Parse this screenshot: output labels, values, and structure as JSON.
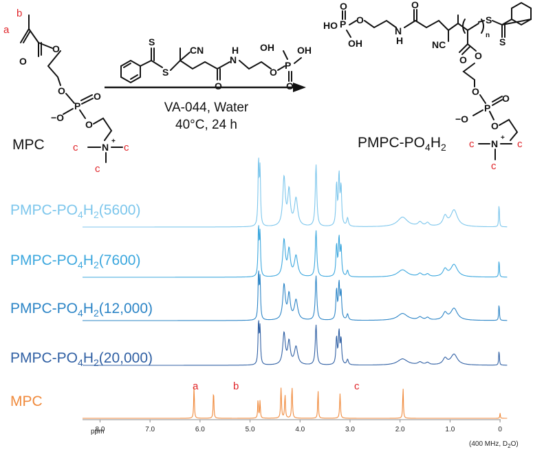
{
  "reaction": {
    "monomer_name": "MPC",
    "product_name": "PMPC-PO4H2",
    "product_name_parts": [
      "PMPC-PO",
      "4",
      "H",
      "2"
    ],
    "conditions": [
      "VA-044, Water",
      "40°C, 24 h"
    ],
    "arrow_icon": "right-arrow-icon"
  },
  "atoms": {
    "o": "O",
    "s": "S",
    "n": "N",
    "p": "P",
    "h": "H",
    "cn": "CN",
    "nc": "NC",
    "oh": "OH",
    "ho": "HO",
    "neg": "−O",
    "plus": "+",
    "rep": "n"
  },
  "proton_labels": {
    "a": "a",
    "b": "b",
    "c": "c"
  },
  "spectra": {
    "colors": {
      "highlight": "#f8f4a8",
      "mpc": "#f08a3c",
      "s20000": "#2f5fa3",
      "s12000": "#2b84c6",
      "s7600": "#3ba7de",
      "s5600": "#7cc6ec"
    },
    "traces": [
      {
        "label": "PMPC-PO4H2(5600)",
        "parts": [
          "PMPC-PO",
          "4",
          "H",
          "2",
          "(5600)"
        ],
        "color": "#7cc6ec",
        "type": "polymer"
      },
      {
        "label": "PMPC-PO4H2(7600)",
        "parts": [
          "PMPC-PO",
          "4",
          "H",
          "2",
          "(7600)"
        ],
        "color": "#3ba7de",
        "type": "polymer"
      },
      {
        "label": "PMPC-PO4H2(12,000)",
        "parts": [
          "PMPC-PO",
          "4",
          "H",
          "2",
          "(12,000)"
        ],
        "color": "#2b84c6",
        "type": "polymer"
      },
      {
        "label": "PMPC-PO4H2(20,000)",
        "parts": [
          "PMPC-PO",
          "4",
          "H",
          "2",
          "(20,000)"
        ],
        "color": "#2f5fa3",
        "type": "polymer"
      },
      {
        "label": "MPC",
        "parts": [
          "MPC"
        ],
        "color": "#f08a3c",
        "type": "monomer"
      }
    ],
    "highlight_ranges_ppm": [
      [
        5.55,
        6.35
      ],
      [
        3.1,
        3.35
      ]
    ],
    "x_axis": {
      "unit_label": "ppm",
      "ticks": [
        "8.0",
        "7.0",
        "6.0",
        "5.0",
        "4.0",
        "3.0",
        "2.0",
        "1.0",
        "0"
      ],
      "range_ppm": [
        8.35,
        -0.15
      ],
      "note": "(400 MHz, D2O)",
      "note_parts": [
        "(400 MHz, D",
        "2",
        "O)"
      ]
    },
    "peak_labels": [
      "a",
      "b",
      "c"
    ]
  }
}
